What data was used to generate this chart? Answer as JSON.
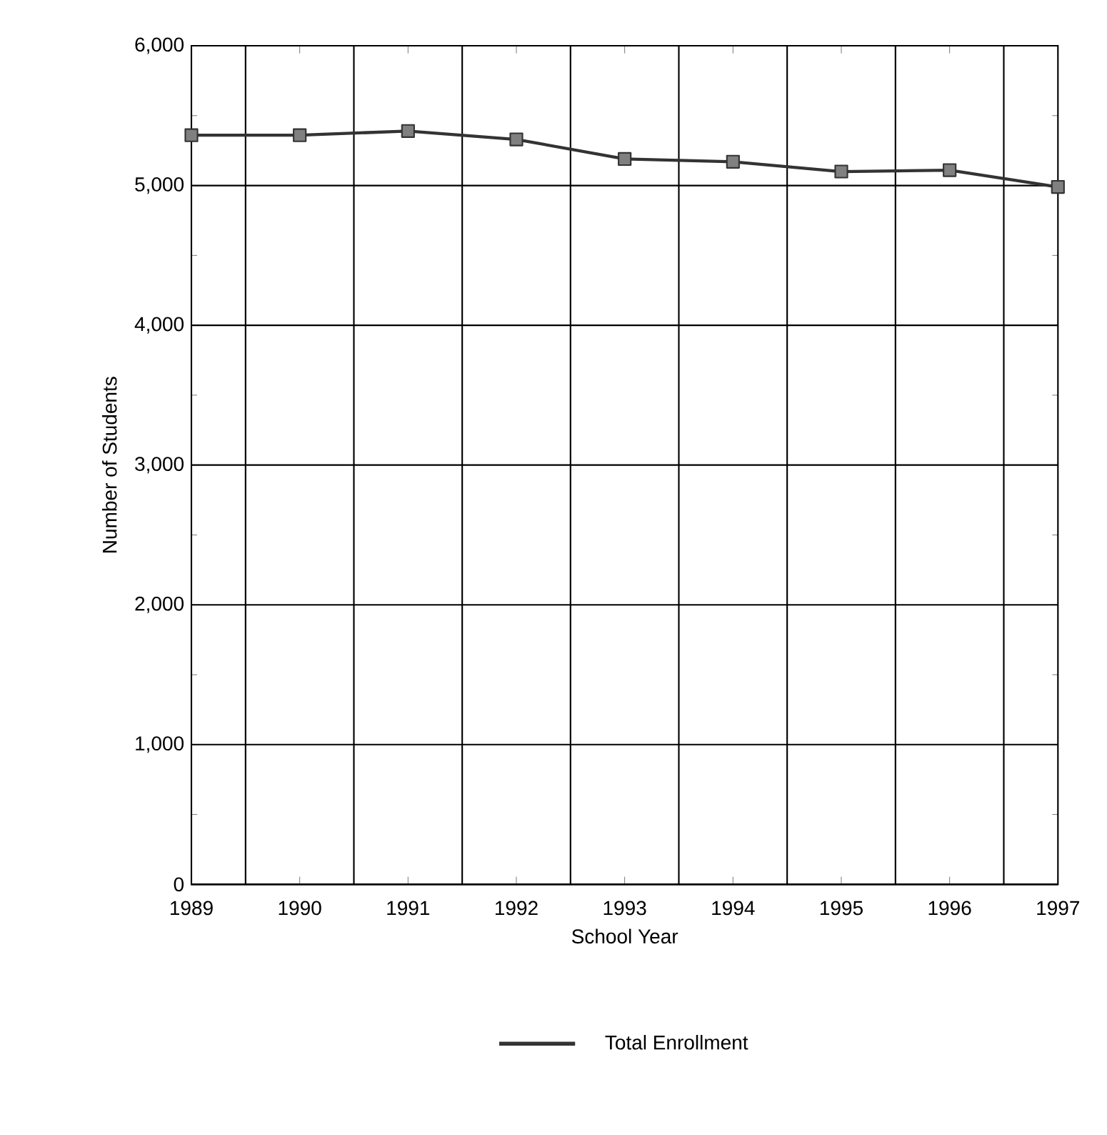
{
  "chart_data": {
    "type": "line",
    "xlabel": "School Year",
    "ylabel": "Number of Students",
    "x": [
      1989,
      1990,
      1991,
      1992,
      1993,
      1994,
      1995,
      1996,
      1997
    ],
    "series": [
      {
        "name": "Total Enrollment",
        "color": "#333333",
        "values": [
          5360,
          5360,
          5390,
          5330,
          5190,
          5170,
          5100,
          5110,
          4990
        ]
      }
    ],
    "xlim": [
      1989,
      1997
    ],
    "xticks": [
      1989,
      1990,
      1991,
      1992,
      1993,
      1994,
      1995,
      1996,
      1997
    ],
    "ylim": [
      0,
      6000
    ],
    "yticks": [
      {
        "value": 0,
        "label": "0"
      },
      {
        "value": 1000,
        "label": "1,000"
      },
      {
        "value": 2000,
        "label": "2,000"
      },
      {
        "value": 3000,
        "label": "3,000"
      },
      {
        "value": 4000,
        "label": "4,000"
      },
      {
        "value": 5000,
        "label": "5,000"
      },
      {
        "value": 6000,
        "label": "6,000"
      }
    ],
    "grid": true,
    "legend": "bottom",
    "marker": "square",
    "line_style": "solid"
  }
}
